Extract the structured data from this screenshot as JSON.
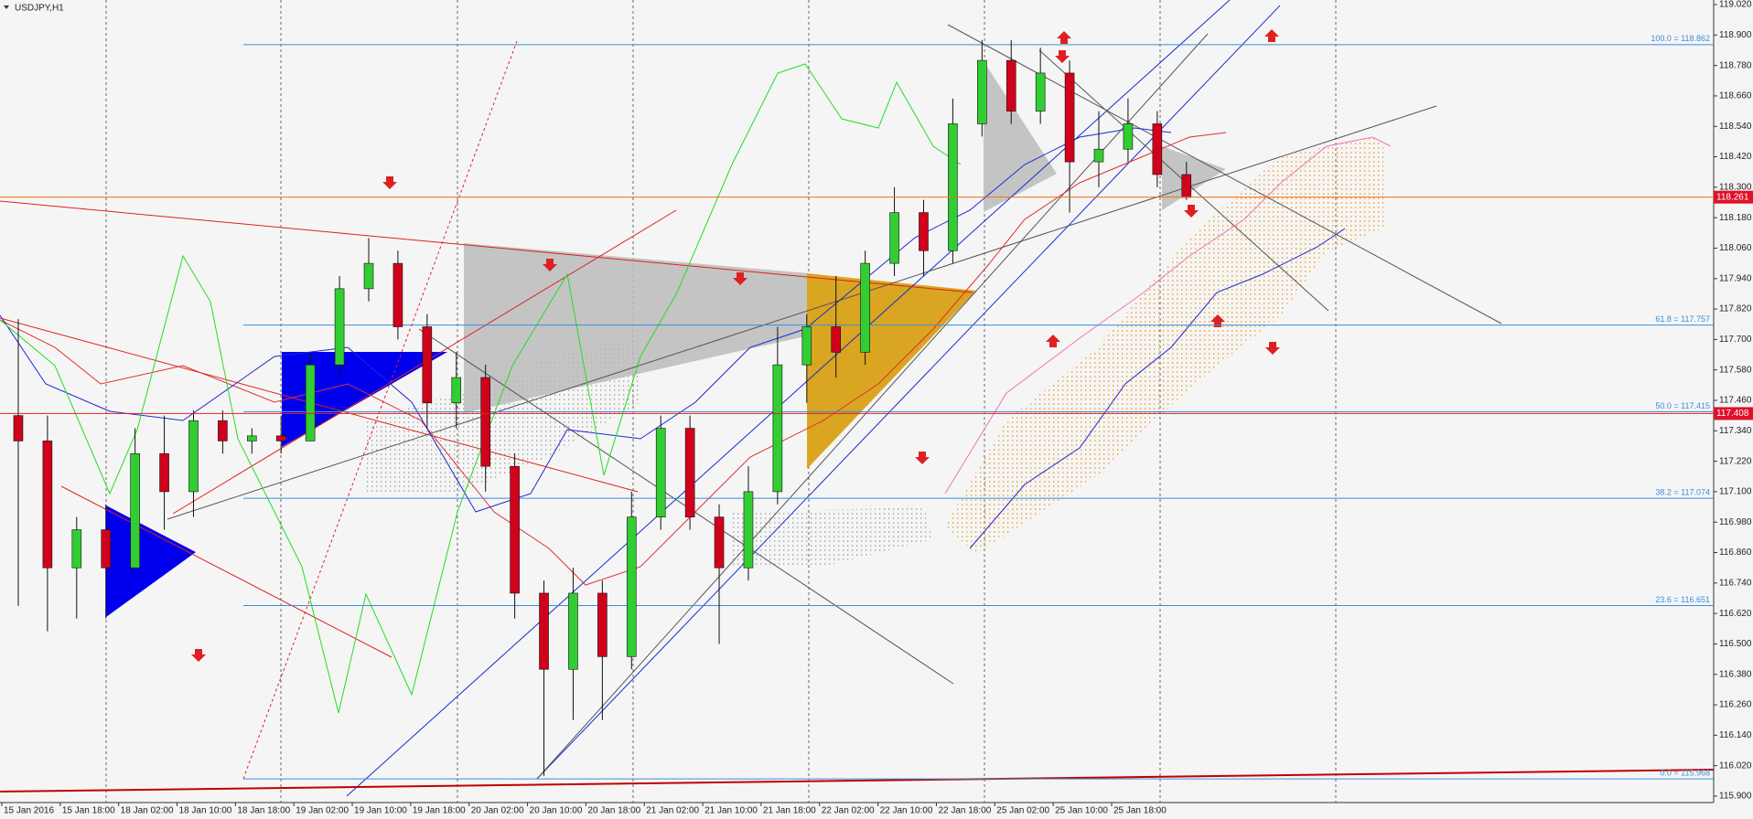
{
  "chart_data": {
    "type": "candlestick",
    "title": "USDJPY,H1",
    "categories": [
      "15 Jan 2016",
      "15 Jan 18:00",
      "18 Jan 02:00",
      "18 Jan 10:00",
      "18 Jan 18:00",
      "19 Jan 02:00",
      "19 Jan 10:00",
      "19 Jan 18:00",
      "20 Jan 02:00",
      "20 Jan 10:00",
      "20 Jan 18:00",
      "21 Jan 02:00",
      "21 Jan 10:00",
      "21 Jan 18:00",
      "22 Jan 02:00",
      "22 Jan 10:00",
      "22 Jan 18:00",
      "25 Jan 02:00",
      "25 Jan 10:00",
      "25 Jan 18:00"
    ],
    "open": [
      117.4,
      117.3,
      116.8,
      116.95,
      116.8,
      117.25,
      117.1,
      117.38,
      117.3,
      117.32,
      117.3,
      117.6,
      117.9,
      118.0,
      117.75,
      117.45,
      117.55,
      117.2,
      116.7,
      116.4,
      116.7,
      116.45,
      117.0,
      117.35,
      117.0,
      116.8,
      117.1,
      117.6,
      117.75,
      117.65,
      118.0,
      118.2,
      118.05,
      118.55,
      118.8,
      118.6,
      118.75,
      118.4,
      118.45,
      118.55,
      118.35
    ],
    "high": [
      117.78,
      117.4,
      117.0,
      117.05,
      117.35,
      117.4,
      117.42,
      117.42,
      117.35,
      117.4,
      117.65,
      117.95,
      118.1,
      118.05,
      117.8,
      117.65,
      117.6,
      117.25,
      116.75,
      116.8,
      116.75,
      117.1,
      117.4,
      117.4,
      117.05,
      117.2,
      117.75,
      117.8,
      117.95,
      118.05,
      118.3,
      118.25,
      118.65,
      118.88,
      118.88,
      118.85,
      118.8,
      118.6,
      118.65,
      118.6,
      118.4
    ],
    "low": [
      116.65,
      116.55,
      116.6,
      116.6,
      116.8,
      116.95,
      117.0,
      117.25,
      117.25,
      117.25,
      117.3,
      117.55,
      117.85,
      117.7,
      117.35,
      117.35,
      117.1,
      116.6,
      115.98,
      116.2,
      116.2,
      116.4,
      116.95,
      116.95,
      116.5,
      116.75,
      117.05,
      117.45,
      117.55,
      117.6,
      117.95,
      117.95,
      118.0,
      118.5,
      118.55,
      118.55,
      118.2,
      118.3,
      118.4,
      118.3,
      118.25
    ],
    "close": [
      117.3,
      116.8,
      116.95,
      116.8,
      117.25,
      117.1,
      117.38,
      117.3,
      117.32,
      117.3,
      117.6,
      117.9,
      118.0,
      117.75,
      117.45,
      117.55,
      117.2,
      116.7,
      116.4,
      116.7,
      116.45,
      117.0,
      117.35,
      117.0,
      116.8,
      117.1,
      117.6,
      117.75,
      117.65,
      118.0,
      118.2,
      118.05,
      118.55,
      118.8,
      118.6,
      118.75,
      118.4,
      118.45,
      118.55,
      118.35,
      118.26
    ],
    "up_color": "#32cd32",
    "down_color": "#d0021b",
    "ylim": [
      115.9,
      119.02
    ],
    "yticks": [
      {
        "value": 119.02,
        "label": "119.020"
      },
      {
        "value": 118.9,
        "label": "118.900"
      },
      {
        "value": 118.78,
        "label": "118.780"
      },
      {
        "value": 118.66,
        "label": "118.660"
      },
      {
        "value": 118.54,
        "label": "118.540"
      },
      {
        "value": 118.42,
        "label": "118.420"
      },
      {
        "value": 118.3,
        "label": "118.300"
      },
      {
        "value": 118.18,
        "label": "118.180"
      },
      {
        "value": 118.06,
        "label": "118.060"
      },
      {
        "value": 117.94,
        "label": "117.940"
      },
      {
        "value": 117.82,
        "label": "117.820"
      },
      {
        "value": 117.7,
        "label": "117.700"
      },
      {
        "value": 117.58,
        "label": "117.580"
      },
      {
        "value": 117.46,
        "label": "117.460"
      },
      {
        "value": 117.34,
        "label": "117.340"
      },
      {
        "value": 117.22,
        "label": "117.220"
      },
      {
        "value": 117.1,
        "label": "117.100"
      },
      {
        "value": 116.98,
        "label": "116.980"
      },
      {
        "value": 116.86,
        "label": "116.860"
      },
      {
        "value": 116.74,
        "label": "116.740"
      },
      {
        "value": 116.62,
        "label": "116.620"
      },
      {
        "value": 116.5,
        "label": "116.500"
      },
      {
        "value": 116.38,
        "label": "116.380"
      },
      {
        "value": 116.26,
        "label": "116.260"
      },
      {
        "value": 116.14,
        "label": "116.140"
      },
      {
        "value": 116.02,
        "label": "116.020"
      },
      {
        "value": 115.9,
        "label": "115.900"
      }
    ],
    "fib_color": "#3a8fd8",
    "fib_levels": [
      {
        "value": 118.862,
        "label": "100.0 = 118.862"
      },
      {
        "value": 117.757,
        "label": "61.8 = 117.757"
      },
      {
        "value": 117.415,
        "label": "50.0 = 117.415"
      },
      {
        "value": 117.074,
        "label": "38.2 = 117.074"
      },
      {
        "value": 116.651,
        "label": "23.6 = 116.651"
      },
      {
        "value": 115.968,
        "label": "0.0 = 115.968"
      }
    ],
    "price_lines": [
      {
        "value": 118.261,
        "color": "#f07010"
      },
      {
        "value": 117.408,
        "color": "#e02020"
      }
    ]
  }
}
